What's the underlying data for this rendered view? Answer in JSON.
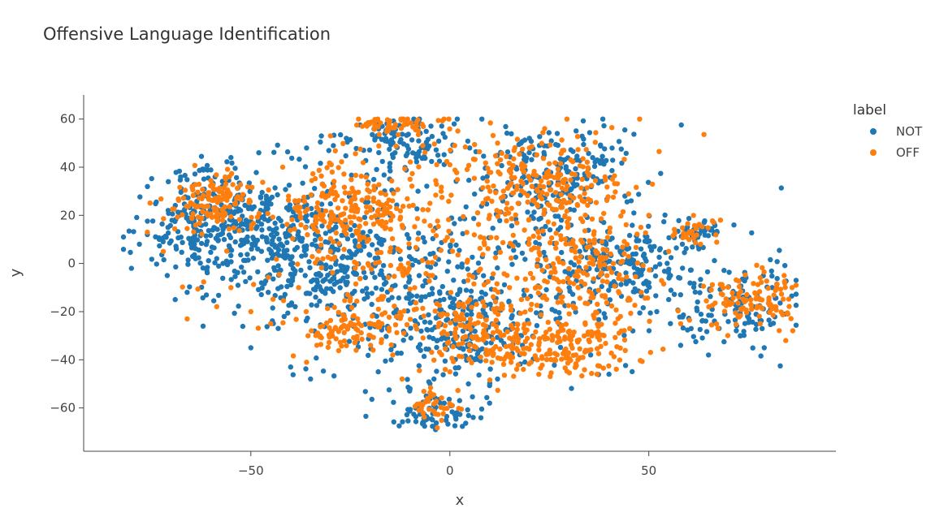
{
  "chart_data": {
    "type": "scatter",
    "title": "Offensive Language Identification",
    "xlabel": "x",
    "ylabel": "y",
    "xlim": [
      -92,
      97
    ],
    "ylim": [
      -78,
      70
    ],
    "x_ticks": [
      -50,
      0,
      50
    ],
    "x_tick_labels": [
      "−50",
      "0",
      "50"
    ],
    "y_ticks": [
      60,
      40,
      20,
      0,
      -20,
      -40,
      -60
    ],
    "y_tick_labels": [
      "60",
      "40",
      "20",
      "0",
      "−20",
      "−40",
      "−60"
    ],
    "grid": false,
    "legend": {
      "title": "label",
      "placement": "top-right outside"
    },
    "series": [
      {
        "name": "NOT",
        "color": "#1f77b4",
        "clusters": [
          {
            "cx": -62,
            "cy": 18,
            "sx": 8,
            "sy": 11,
            "n": 240
          },
          {
            "cx": -42,
            "cy": 8,
            "sx": 11,
            "sy": 14,
            "n": 300
          },
          {
            "cx": -25,
            "cy": -5,
            "sx": 12,
            "sy": 18,
            "n": 220
          },
          {
            "cx": -12,
            "cy": 50,
            "sx": 9,
            "sy": 7,
            "n": 110
          },
          {
            "cx": 2,
            "cy": -25,
            "sx": 8,
            "sy": 12,
            "n": 180
          },
          {
            "cx": -5,
            "cy": -62,
            "sx": 5,
            "sy": 4,
            "n": 70
          },
          {
            "cx": 28,
            "cy": 38,
            "sx": 10,
            "sy": 10,
            "n": 180
          },
          {
            "cx": 45,
            "cy": 0,
            "sx": 9,
            "sy": 8,
            "n": 160
          },
          {
            "cx": 62,
            "cy": 14,
            "sx": 4,
            "sy": 3,
            "n": 40
          },
          {
            "cx": 72,
            "cy": -18,
            "sx": 8,
            "sy": 8,
            "n": 110
          },
          {
            "cx": 15,
            "cy": -5,
            "sx": 25,
            "sy": 25,
            "n": 250
          }
        ],
        "points": [
          [
            -82,
            11
          ],
          [
            -80,
            -2
          ],
          [
            -76,
            12
          ],
          [
            -78,
            8
          ],
          [
            -73,
            10
          ],
          [
            -71,
            -5
          ],
          [
            -68,
            20
          ],
          [
            -66,
            -12
          ],
          [
            -59,
            36
          ],
          [
            -55,
            44
          ],
          [
            -48,
            46
          ],
          [
            -36,
            48
          ],
          [
            -26,
            52
          ],
          [
            -17,
            57
          ],
          [
            -8,
            56
          ],
          [
            -3,
            45
          ],
          [
            5,
            48
          ],
          [
            -5,
            -50
          ],
          [
            10,
            -58
          ],
          [
            12,
            -48
          ],
          [
            20,
            52
          ],
          [
            27,
            54
          ],
          [
            37,
            43
          ],
          [
            44,
            28
          ],
          [
            50,
            -8
          ],
          [
            55,
            -15
          ],
          [
            58,
            -34
          ],
          [
            65,
            -38
          ],
          [
            73,
            -30
          ],
          [
            81,
            -10
          ],
          [
            87,
            -7
          ],
          [
            79,
            -35
          ],
          [
            40,
            -46
          ],
          [
            -50,
            -35
          ],
          [
            -40,
            -43
          ],
          [
            -35,
            -48
          ],
          [
            -18,
            -45
          ],
          [
            -10,
            -52
          ],
          [
            -4,
            -48
          ],
          [
            30,
            -10
          ],
          [
            18,
            -30
          ],
          [
            0,
            5
          ],
          [
            -15,
            20
          ],
          [
            -32,
            33
          ],
          [
            -8,
            30
          ],
          [
            46,
            -28
          ],
          [
            52,
            -20
          ],
          [
            -62,
            -26
          ],
          [
            -69,
            -15
          ],
          [
            -57,
            0
          ]
        ]
      },
      {
        "name": "OFF",
        "color": "#ff7f0e",
        "clusters": [
          {
            "cx": -60,
            "cy": 25,
            "sx": 6,
            "sy": 6,
            "n": 130
          },
          {
            "cx": -25,
            "cy": 22,
            "sx": 8,
            "sy": 8,
            "n": 190
          },
          {
            "cx": -15,
            "cy": 58,
            "sx": 5,
            "sy": 2,
            "n": 45
          },
          {
            "cx": -25,
            "cy": -28,
            "sx": 6,
            "sy": 5,
            "n": 90
          },
          {
            "cx": 25,
            "cy": 33,
            "sx": 9,
            "sy": 9,
            "n": 180
          },
          {
            "cx": 8,
            "cy": -30,
            "sx": 8,
            "sy": 8,
            "n": 150
          },
          {
            "cx": 30,
            "cy": -35,
            "sx": 8,
            "sy": 6,
            "n": 150
          },
          {
            "cx": 35,
            "cy": -5,
            "sx": 8,
            "sy": 10,
            "n": 150
          },
          {
            "cx": -4,
            "cy": -60,
            "sx": 3,
            "sy": 3,
            "n": 35
          },
          {
            "cx": 75,
            "cy": -15,
            "sx": 6,
            "sy": 6,
            "n": 110
          },
          {
            "cx": 62,
            "cy": 14,
            "sx": 3,
            "sy": 3,
            "n": 25
          },
          {
            "cx": 0,
            "cy": 10,
            "sx": 25,
            "sy": 25,
            "n": 330
          }
        ],
        "points": [
          [
            -76,
            13
          ],
          [
            -72,
            5
          ],
          [
            -66,
            -23
          ],
          [
            -55,
            -10
          ],
          [
            -42,
            40
          ],
          [
            -30,
            53
          ],
          [
            -22,
            57
          ],
          [
            -12,
            60
          ],
          [
            -10,
            35
          ],
          [
            0,
            41
          ],
          [
            2,
            55
          ],
          [
            -5,
            25
          ],
          [
            12,
            50
          ],
          [
            20,
            48
          ],
          [
            39,
            36
          ],
          [
            48,
            15
          ],
          [
            50,
            20
          ],
          [
            55,
            5
          ],
          [
            58,
            -25
          ],
          [
            63,
            8
          ],
          [
            68,
            18
          ],
          [
            78,
            -25
          ],
          [
            84,
            -5
          ],
          [
            86,
            -10
          ],
          [
            37,
            -46
          ],
          [
            22,
            -40
          ],
          [
            0,
            -45
          ],
          [
            -12,
            -48
          ],
          [
            -36,
            -41
          ],
          [
            -45,
            -25
          ],
          [
            -50,
            -20
          ],
          [
            -38,
            -10
          ],
          [
            -30,
            5
          ],
          [
            10,
            20
          ],
          [
            15,
            -10
          ],
          [
            28,
            10
          ],
          [
            5,
            -15
          ],
          [
            -18,
            -15
          ],
          [
            -5,
            -5
          ],
          [
            18,
            -15
          ]
        ]
      }
    ]
  }
}
